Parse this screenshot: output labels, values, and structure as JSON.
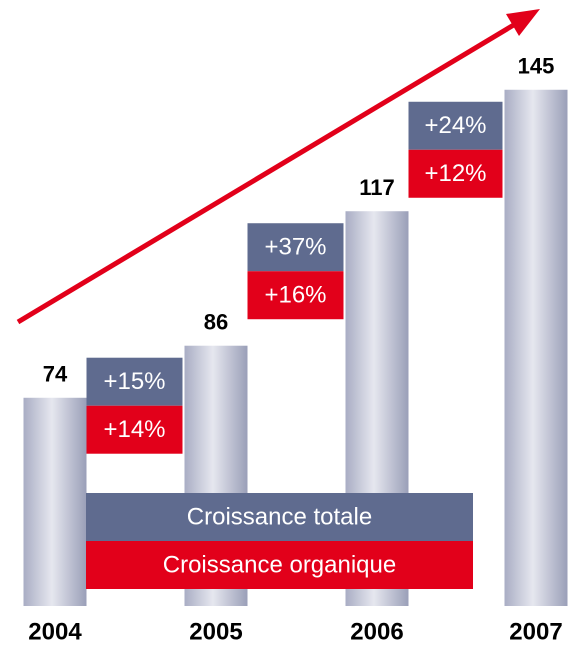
{
  "chart_data": {
    "type": "bar",
    "categories": [
      "2004",
      "2005",
      "2006",
      "2007"
    ],
    "values": [
      74,
      86,
      117,
      145
    ],
    "ylim": [
      26,
      165
    ],
    "series": [
      {
        "name": "Croissance totale",
        "color": "#5f6b8f",
        "values": [
          null,
          15,
          37,
          24
        ],
        "value_labels": [
          null,
          "+15%",
          "+37%",
          "+24%"
        ]
      },
      {
        "name": "Croissance organique",
        "color": "#e2001a",
        "values": [
          null,
          14,
          16,
          12
        ],
        "value_labels": [
          null,
          "+14%",
          "+16%",
          "+12%"
        ]
      }
    ]
  }
}
